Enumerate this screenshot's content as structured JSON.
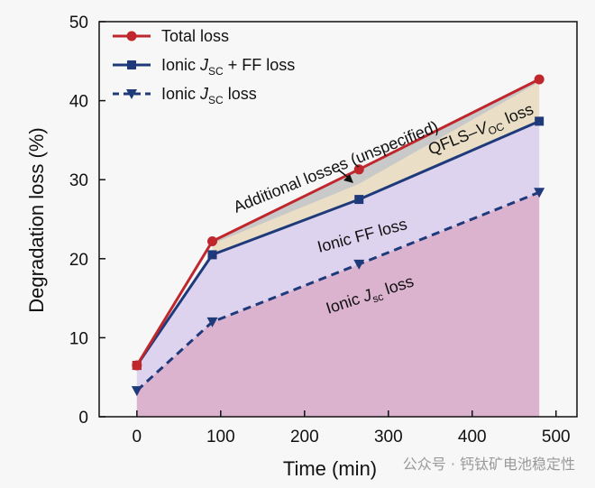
{
  "chart_data": {
    "type": "area",
    "xlabel": "Time (min)",
    "ylabel": "Degradation loss (%)",
    "xlim": [
      -45,
      525
    ],
    "ylim": [
      0,
      50
    ],
    "xticks": [
      "0",
      "100",
      "200",
      "300",
      "400",
      "500"
    ],
    "yticks": [
      "0",
      "10",
      "20",
      "30",
      "40",
      "50"
    ],
    "x": [
      0,
      90,
      265,
      480
    ],
    "series": [
      {
        "name": "Total loss",
        "values": [
          6.5,
          22.2,
          31.3,
          42.7
        ],
        "color": "#c0272d",
        "marker": "circle",
        "line": "solid"
      },
      {
        "name": "Ionic J_SC + FF loss",
        "values": [
          6.5,
          20.5,
          27.5,
          37.4
        ],
        "color": "#1f3a7a",
        "marker": "square",
        "line": "solid"
      },
      {
        "name": "Ionic J_SC loss",
        "values": [
          3.3,
          12.0,
          19.3,
          28.4
        ],
        "color": "#1f3a7a",
        "marker": "triangle-down",
        "line": "dashed"
      }
    ],
    "legend": {
      "placement": "top-left",
      "items": [
        {
          "pre": "Total loss"
        },
        {
          "pre": "Ionic ",
          "italic": "J",
          "sub": "SC",
          "post": " + FF loss"
        },
        {
          "pre": "Ionic ",
          "italic": "J",
          "sub": "SC",
          "post": " loss"
        }
      ]
    },
    "regions": {
      "jsc": {
        "color": "#dcb3cf"
      },
      "ff": {
        "color": "#ddd3ee"
      },
      "qfls": {
        "color": "#eadfc6"
      },
      "additional": {
        "color": "#c9c9c9"
      }
    },
    "annotations": {
      "additional": "Additional losses (unspecified)",
      "qfls_pre": "QFLS–",
      "qfls_italic": "V",
      "qfls_sub": "OC",
      "qfls_post": " loss",
      "ff": "Ionic FF loss",
      "jsc_pre": "Ionic ",
      "jsc_italic": "J",
      "jsc_sub": "sc",
      "jsc_post": " loss"
    },
    "grid": false
  },
  "watermark": "公众号 · 钙钛矿电池稳定性"
}
